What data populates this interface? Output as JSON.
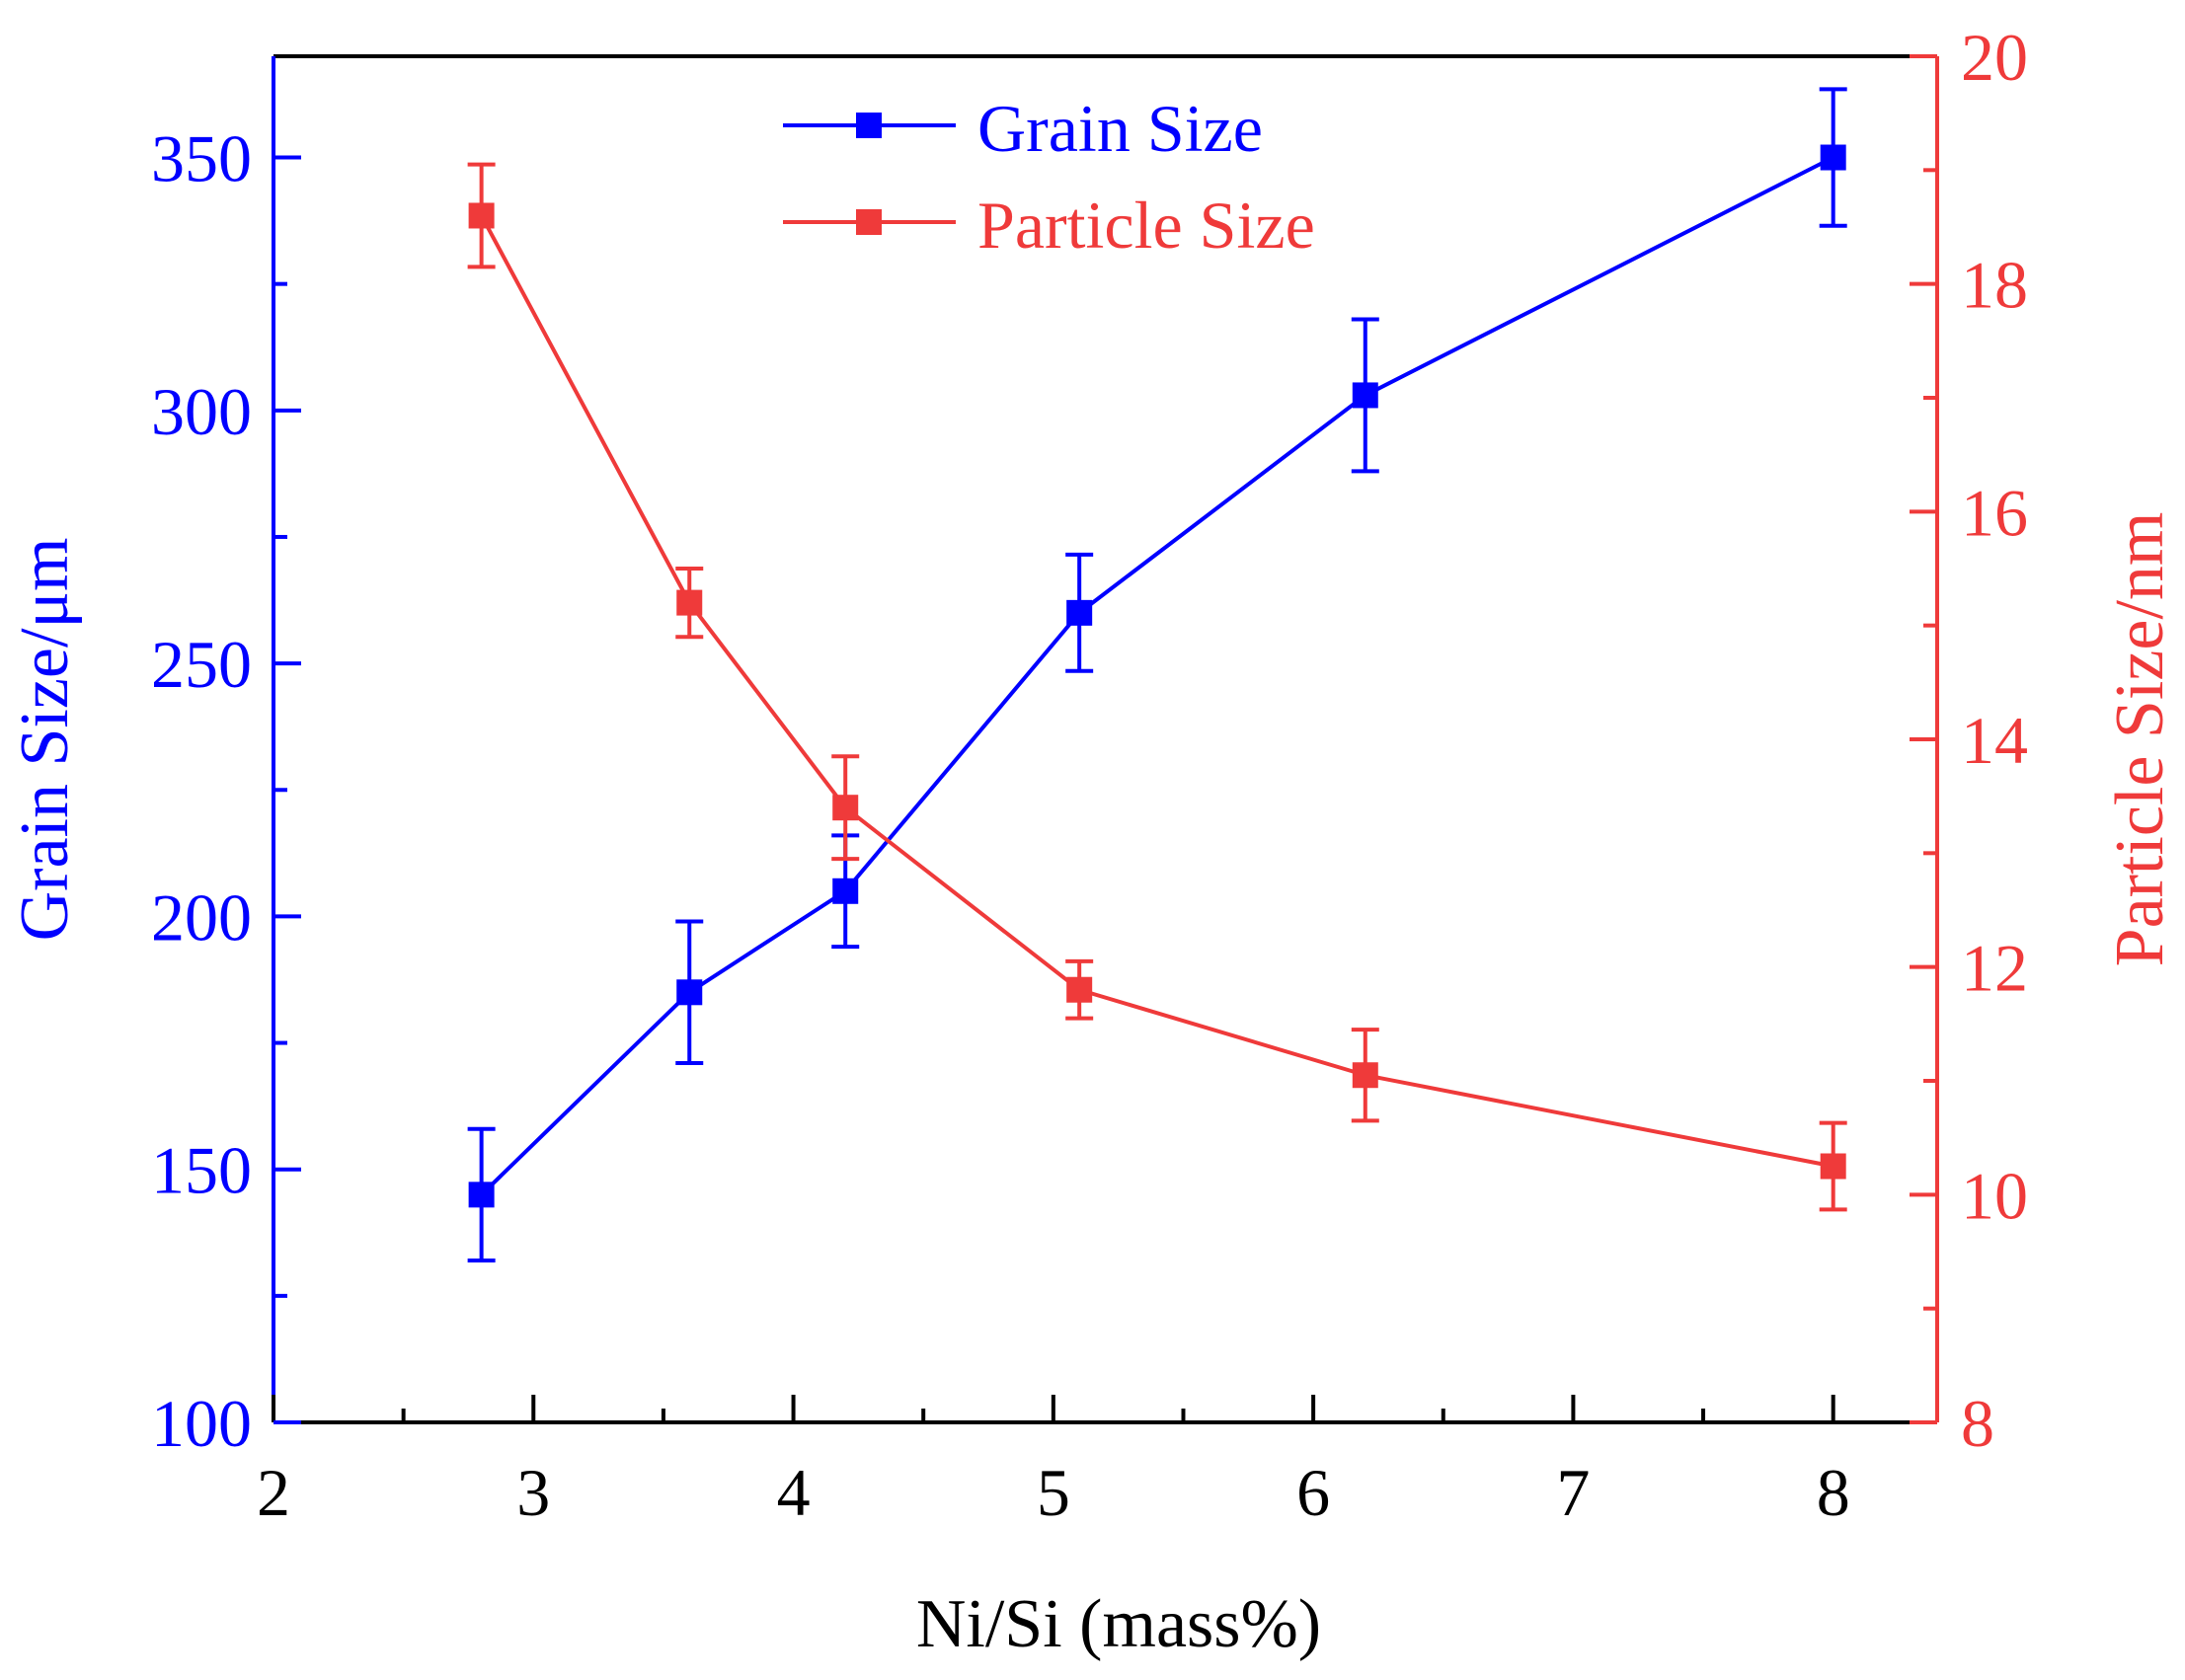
{
  "chart_data": {
    "type": "line",
    "xlabel": "Ni/Si (mass%)",
    "ylabel_left": "Grain Size/μm",
    "ylabel_right": "Particle Size/nm",
    "xlim": [
      2,
      8.4
    ],
    "ylim_left": [
      100,
      370
    ],
    "ylim_right": [
      8,
      20
    ],
    "x_ticks": [
      2,
      3,
      4,
      5,
      6,
      7,
      8
    ],
    "x_tick_labels": [
      "2",
      "3",
      "4",
      "5",
      "6",
      "7",
      "8"
    ],
    "y_left_ticks": [
      100,
      150,
      200,
      250,
      300,
      350
    ],
    "y_left_tick_labels": [
      "100",
      "150",
      "200",
      "250",
      "300",
      "350"
    ],
    "y_right_ticks": [
      8,
      10,
      12,
      14,
      16,
      18,
      20
    ],
    "y_right_tick_labels": [
      "8",
      "10",
      "12",
      "14",
      "16",
      "18",
      "20"
    ],
    "grid": false,
    "legend_position": "top-center",
    "series": [
      {
        "name": "Grain Size",
        "axis": "left",
        "color": "#0000ff",
        "x": [
          2.8,
          3.6,
          4.2,
          5.1,
          6.2,
          8.0
        ],
        "values": [
          145,
          185,
          205,
          260,
          303,
          350
        ],
        "errors": [
          13,
          14,
          11,
          11.5,
          15,
          13.5
        ]
      },
      {
        "name": "Particle Size",
        "axis": "right",
        "color": "#ef3a3a",
        "x": [
          2.8,
          3.6,
          4.2,
          5.1,
          6.2,
          8.0
        ],
        "values": [
          18.6,
          15.2,
          13.4,
          11.8,
          11.05,
          10.25
        ],
        "errors": [
          0.45,
          0.3,
          0.45,
          0.25,
          0.4,
          0.38
        ]
      }
    ]
  }
}
